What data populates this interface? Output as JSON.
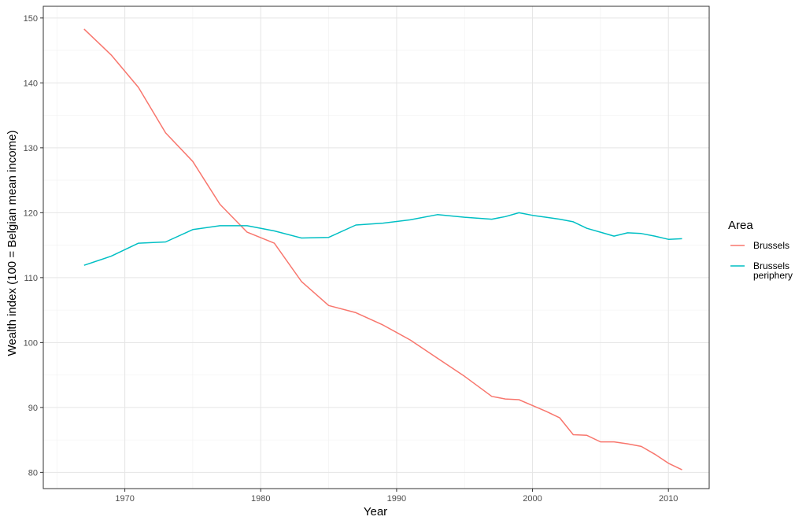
{
  "chart_data": {
    "type": "line",
    "xlabel": "Year",
    "ylabel": "Wealth index (100 = Belgian mean income)",
    "xlim": [
      1964,
      2013
    ],
    "ylim": [
      77.5,
      151.8
    ],
    "x_ticks": [
      1970,
      1980,
      1990,
      2000,
      2010
    ],
    "y_ticks": [
      80,
      90,
      100,
      110,
      120,
      130,
      140,
      150
    ],
    "grid": true,
    "legend_title": "Area",
    "legend_position": "right",
    "series": [
      {
        "name": "Brussels",
        "legend_lines": [
          "Brussels"
        ],
        "color": "#F8766D",
        "x": [
          1967,
          1969,
          1971,
          1973,
          1975,
          1977,
          1979,
          1981,
          1983,
          1985,
          1987,
          1989,
          1991,
          1993,
          1995,
          1997,
          1998,
          1999,
          2000,
          2001,
          2002,
          2003,
          2004,
          2005,
          2006,
          2007,
          2008,
          2009,
          2010,
          2011
        ],
        "values": [
          148.3,
          144.3,
          139.3,
          132.3,
          127.9,
          121.3,
          117.0,
          115.3,
          109.4,
          105.7,
          104.6,
          102.7,
          100.4,
          97.6,
          94.8,
          91.7,
          91.3,
          91.2,
          90.3,
          89.4,
          88.4,
          85.8,
          85.7,
          84.7,
          84.7,
          84.4,
          84.0,
          82.8,
          81.4,
          80.4
        ]
      },
      {
        "name": "Brussels periphery",
        "legend_lines": [
          "Brussels",
          "periphery"
        ],
        "color": "#00BFC4",
        "x": [
          1967,
          1969,
          1971,
          1973,
          1975,
          1977,
          1979,
          1981,
          1983,
          1985,
          1987,
          1989,
          1991,
          1993,
          1995,
          1997,
          1998,
          1999,
          2000,
          2001,
          2002,
          2003,
          2004,
          2005,
          2006,
          2007,
          2008,
          2009,
          2010,
          2011
        ],
        "values": [
          111.9,
          113.3,
          115.3,
          115.5,
          117.4,
          118.0,
          118.0,
          117.2,
          116.1,
          116.2,
          118.1,
          118.4,
          118.9,
          119.7,
          119.3,
          119.0,
          119.4,
          120.0,
          119.6,
          119.3,
          119.0,
          118.6,
          117.6,
          117.0,
          116.4,
          116.9,
          116.8,
          116.4,
          115.9,
          116.0
        ]
      }
    ]
  }
}
